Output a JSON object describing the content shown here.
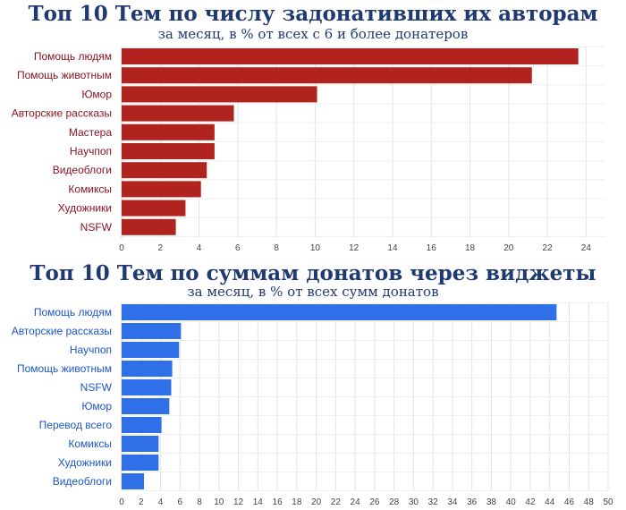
{
  "chart_data": [
    {
      "type": "bar",
      "orientation": "horizontal",
      "title": "Топ 10 Тем по числу задонативших их авторам",
      "subtitle": "за месяц, в % от всех с 6 и более донатеров",
      "categories": [
        "Помощь людям",
        "Помощь животным",
        "Юмор",
        "Авторские рассказы",
        "Мастера",
        "Научпоп",
        "Видеоблоги",
        "Комиксы",
        "Художники",
        "NSFW"
      ],
      "values": [
        23.6,
        21.2,
        10.1,
        5.8,
        4.8,
        4.8,
        4.4,
        4.1,
        3.3,
        2.8
      ],
      "xlim": [
        0,
        25
      ],
      "xticks": [
        0,
        2,
        4,
        6,
        8,
        10,
        12,
        14,
        16,
        18,
        20,
        22,
        24
      ],
      "grid": true,
      "bar_color": "#b0231e",
      "label_color": "#8a1424"
    },
    {
      "type": "bar",
      "orientation": "horizontal",
      "title": "Топ 10 Тем по суммам донатов через виджеты",
      "subtitle": "за месяц, в % от всех сумм донатов",
      "categories": [
        "Помощь людям",
        "Авторские рассказы",
        "Научпоп",
        "Помощь животным",
        "NSFW",
        "Юмор",
        "Перевод всего",
        "Комиксы",
        "Художники",
        "Видеоблоги"
      ],
      "values": [
        44.7,
        6.1,
        5.9,
        5.2,
        5.1,
        4.9,
        4.1,
        3.8,
        3.8,
        2.3
      ],
      "xlim": [
        0,
        50
      ],
      "xticks": [
        0,
        2,
        4,
        6,
        8,
        10,
        12,
        14,
        16,
        18,
        20,
        22,
        24,
        26,
        28,
        30,
        32,
        34,
        36,
        38,
        40,
        42,
        44,
        46,
        48,
        50
      ],
      "grid": true,
      "bar_color": "#2f6fe8",
      "label_color": "#1d56c9"
    }
  ]
}
